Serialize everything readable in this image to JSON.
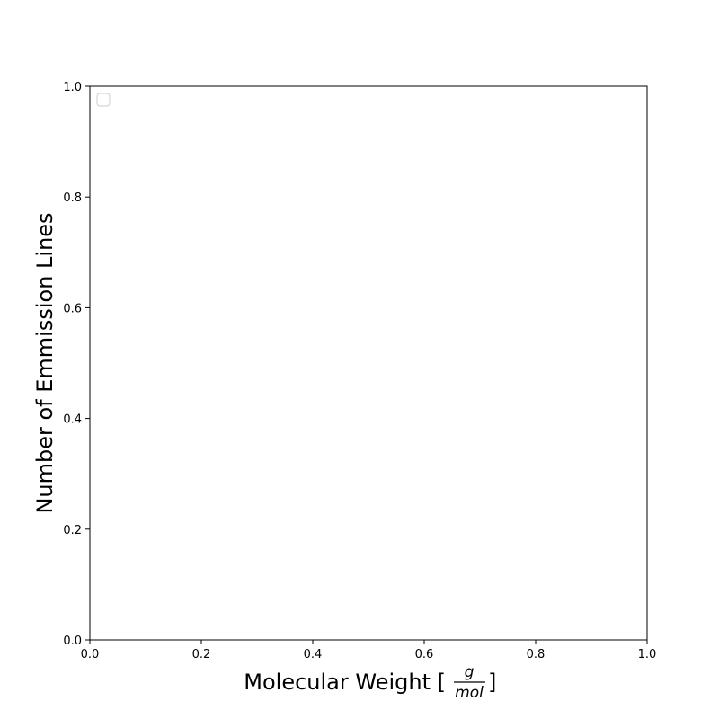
{
  "chart_data": {
    "type": "line",
    "series": [],
    "x": [],
    "xlabel": "Molecular Weight [",
    "xlabel_close": "]",
    "xlabel_unit_numerator": "g",
    "xlabel_unit_denominator": "mol",
    "ylabel": "Number of Emmission Lines",
    "xlim": [
      0.0,
      1.0
    ],
    "ylim": [
      0.0,
      1.0
    ],
    "xticks": [
      "0.0",
      "0.2",
      "0.4",
      "0.6",
      "0.8",
      "1.0"
    ],
    "yticks": [
      "0.0",
      "0.2",
      "0.4",
      "0.6",
      "0.8",
      "1.0"
    ],
    "grid": false,
    "legend_location": "upper-left",
    "colors": {
      "axes": "#000000",
      "legend_border": "#cccccc",
      "background": "#ffffff"
    }
  }
}
